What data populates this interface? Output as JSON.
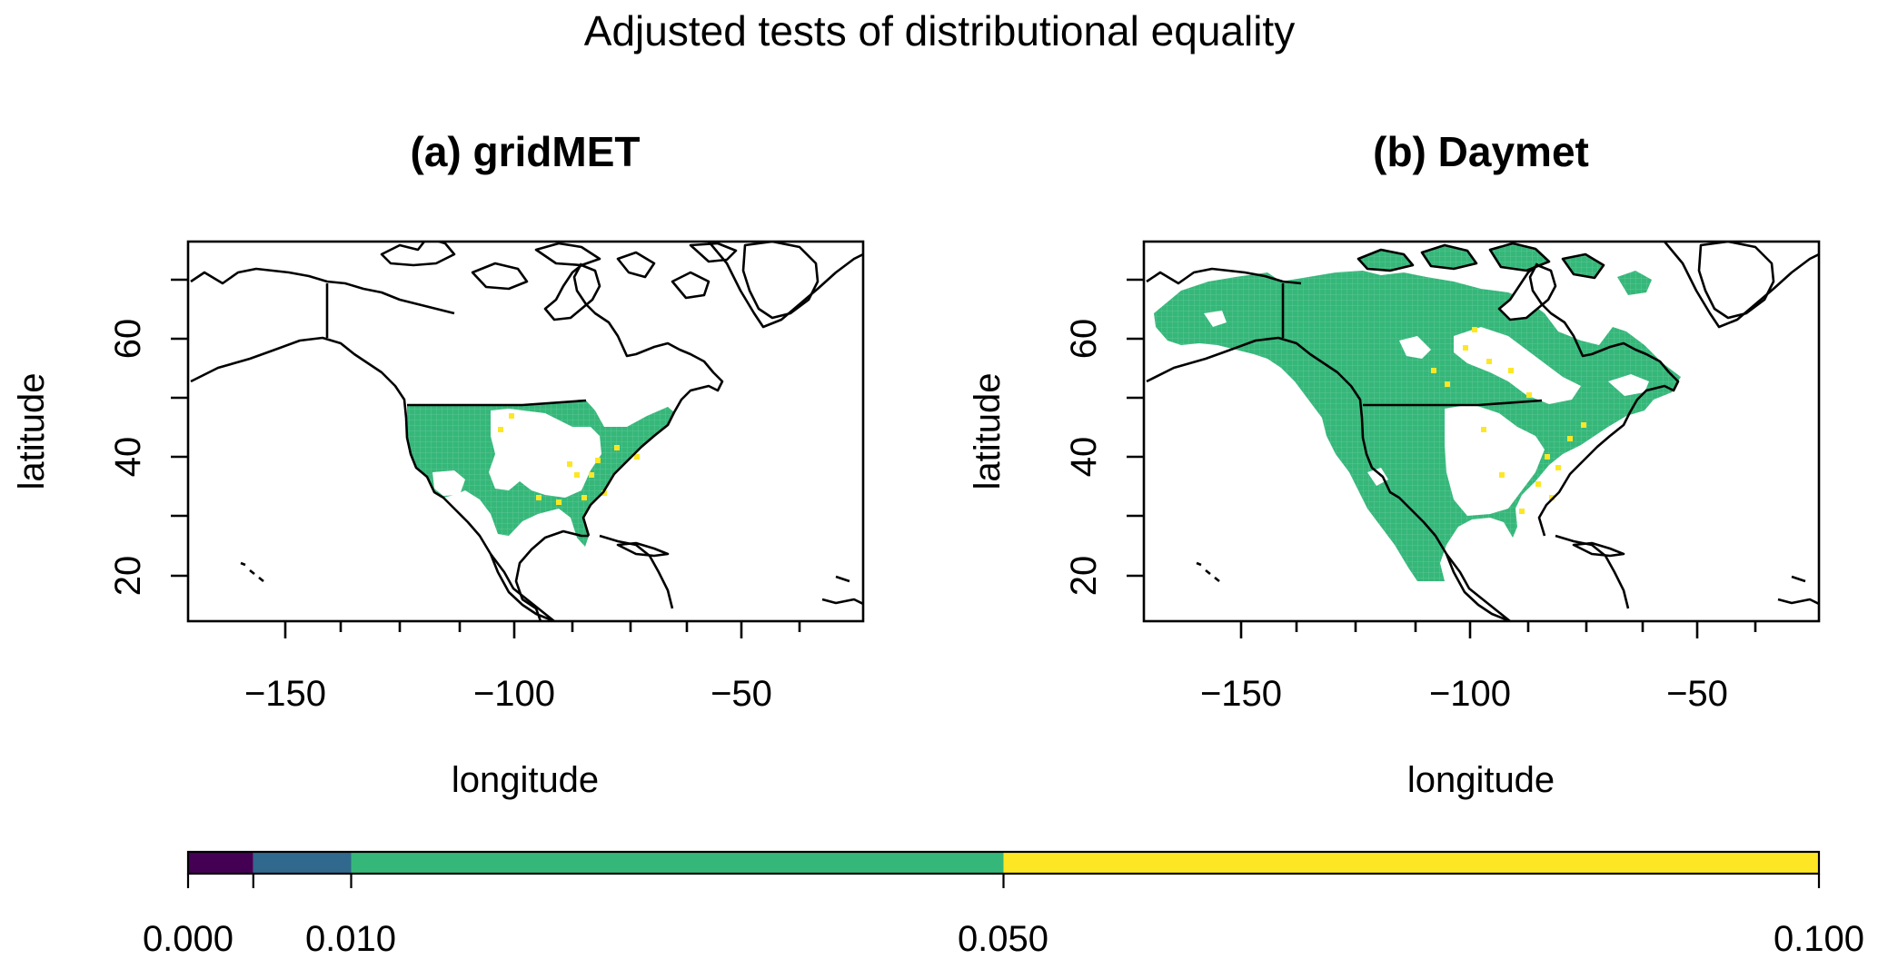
{
  "figure": {
    "title": "Adjusted tests of distributional equality"
  },
  "panels": [
    {
      "id": "a",
      "title": "(a) gridMET",
      "xlabel": "longitude",
      "ylabel": "latitude",
      "xticks": [
        "−150",
        "−100",
        "−50"
      ],
      "yticks": [
        "20",
        "40",
        "60"
      ],
      "xlim": [
        -172,
        -25
      ],
      "ylim": [
        12,
        75
      ],
      "coverage": "contiguous United States",
      "dominant_class": "0.010–0.050"
    },
    {
      "id": "b",
      "title": "(b) Daymet",
      "xlabel": "longitude",
      "ylabel": "latitude",
      "xticks": [
        "−150",
        "−100",
        "−50"
      ],
      "yticks": [
        "20",
        "40",
        "60"
      ],
      "xlim": [
        -172,
        -25
      ],
      "ylim": [
        12,
        75
      ],
      "coverage": "North America (Canada, United States, Mexico, Alaska)",
      "dominant_class": "0.010–0.050"
    }
  ],
  "colorbar": {
    "breaks": [
      0.0,
      0.004,
      0.01,
      0.05,
      0.1
    ],
    "labels": [
      "0.000",
      "0.010",
      "0.050",
      "0.100"
    ],
    "colors": [
      "#440154",
      "#31688e",
      "#35b779",
      "#fde725"
    ]
  },
  "colors": {
    "coast": "#000000",
    "fill_main": "#35b779",
    "fill_high": "#fde725",
    "background": "#ffffff"
  }
}
